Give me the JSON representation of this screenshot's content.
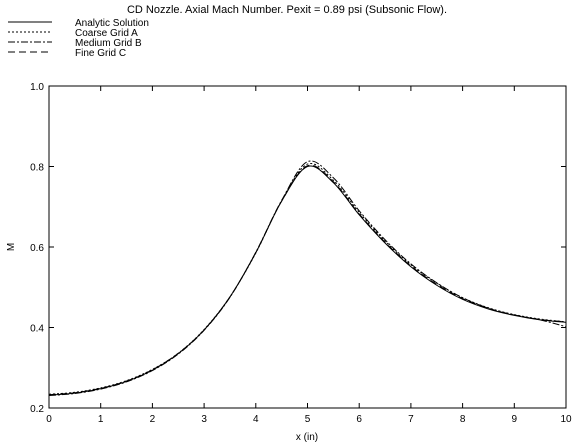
{
  "chart_data": {
    "type": "line",
    "title": "CD Nozzle. Axial Mach Number. Pexit = 0.89 psi (Subsonic Flow).",
    "xlabel": "x (in)",
    "ylabel": "M",
    "xlim": [
      0,
      10
    ],
    "ylim": [
      0.2,
      1.0
    ],
    "xticks": [
      0,
      1,
      2,
      3,
      4,
      5,
      6,
      7,
      8,
      9,
      10
    ],
    "yticks": [
      0.2,
      0.4,
      0.6,
      0.8,
      1.0
    ],
    "xtick_labels": [
      "0",
      "1",
      "2",
      "3",
      "4",
      "5",
      "6",
      "7",
      "8",
      "9",
      "10"
    ],
    "ytick_labels": [
      "0.2",
      "0.4",
      "0.6",
      "0.8",
      "1.0"
    ],
    "grid": false,
    "legend_position": "top-left",
    "x": [
      0,
      0.5,
      1,
      1.5,
      2,
      2.5,
      3,
      3.5,
      4,
      4.5,
      5,
      5.5,
      6,
      6.5,
      7,
      7.5,
      8,
      8.5,
      9,
      9.5,
      10
    ],
    "series": [
      {
        "name": "Analytic Solution",
        "style": "solid",
        "values": [
          0.232,
          0.237,
          0.248,
          0.266,
          0.294,
          0.335,
          0.394,
          0.476,
          0.586,
          0.714,
          0.8,
          0.76,
          0.68,
          0.61,
          0.551,
          0.505,
          0.47,
          0.446,
          0.43,
          0.419,
          0.413
        ]
      },
      {
        "name": "Coarse Grid A",
        "style": "dotted",
        "values": [
          0.234,
          0.239,
          0.25,
          0.268,
          0.296,
          0.336,
          0.395,
          0.476,
          0.585,
          0.715,
          0.806,
          0.766,
          0.686,
          0.615,
          0.556,
          0.51,
          0.474,
          0.449,
          0.432,
          0.421,
          0.414
        ]
      },
      {
        "name": "Medium Grid B",
        "style": "dashdot",
        "values": [
          0.231,
          0.236,
          0.247,
          0.265,
          0.293,
          0.334,
          0.393,
          0.475,
          0.587,
          0.716,
          0.812,
          0.772,
          0.69,
          0.618,
          0.558,
          0.511,
          0.474,
          0.448,
          0.431,
          0.419,
          0.402
        ]
      },
      {
        "name": "Fine Grid C",
        "style": "dashed",
        "values": [
          0.233,
          0.238,
          0.249,
          0.267,
          0.295,
          0.336,
          0.394,
          0.476,
          0.586,
          0.714,
          0.802,
          0.762,
          0.682,
          0.612,
          0.553,
          0.507,
          0.472,
          0.447,
          0.431,
          0.42,
          0.414
        ]
      }
    ]
  }
}
